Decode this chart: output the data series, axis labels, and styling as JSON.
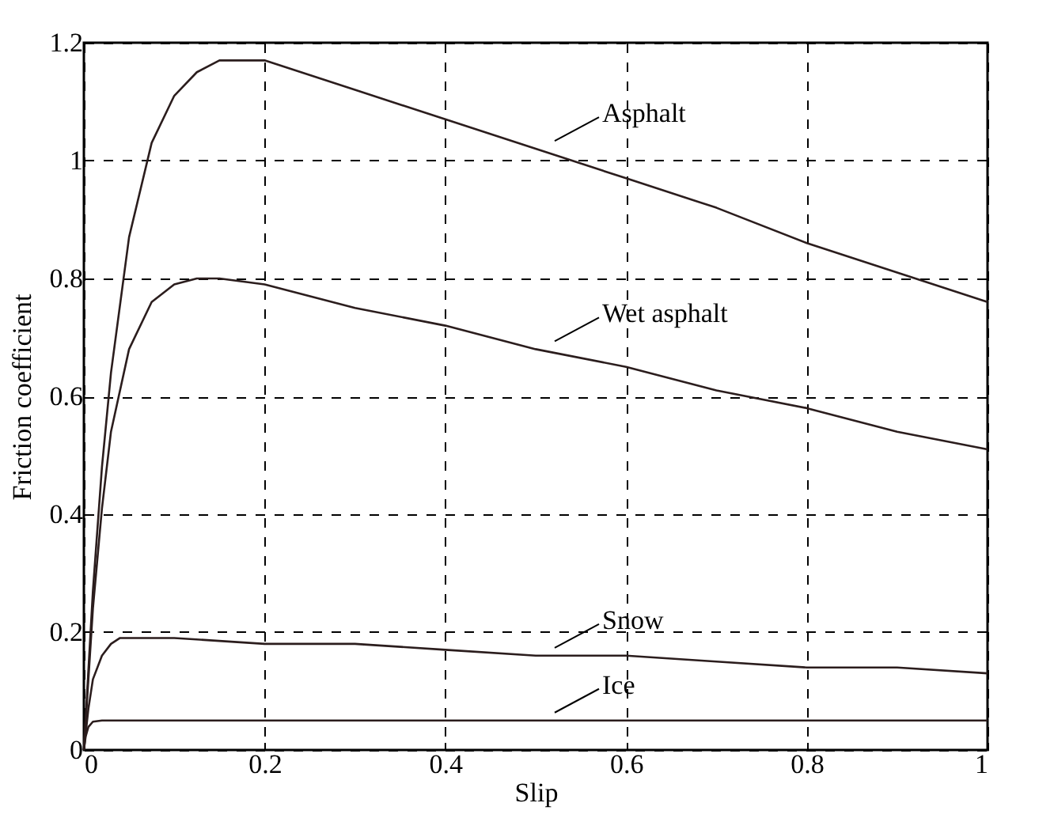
{
  "chart_data": {
    "type": "line",
    "xlabel": "Slip",
    "ylabel": "Friction coefficient",
    "xlim": [
      0,
      1
    ],
    "ylim": [
      0,
      1.2
    ],
    "xticks": [
      0,
      0.2,
      0.4,
      0.6,
      0.8,
      1
    ],
    "yticks": [
      0,
      0.2,
      0.4,
      0.6,
      0.8,
      1,
      1.2
    ],
    "grid": true,
    "marker": "none",
    "line_style": "solid",
    "series": [
      {
        "name": "Asphalt",
        "color": "#2b1d1d",
        "x": [
          0,
          0.01,
          0.02,
          0.03,
          0.05,
          0.075,
          0.1,
          0.125,
          0.15,
          0.175,
          0.2,
          0.3,
          0.4,
          0.5,
          0.6,
          0.7,
          0.8,
          0.9,
          1
        ],
        "values": [
          0,
          0.27,
          0.48,
          0.64,
          0.87,
          1.03,
          1.11,
          1.15,
          1.17,
          1.17,
          1.17,
          1.12,
          1.07,
          1.02,
          0.97,
          0.92,
          0.86,
          0.81,
          0.76
        ]
      },
      {
        "name": "Wet asphalt",
        "color": "#2b1d1d",
        "x": [
          0,
          0.01,
          0.02,
          0.03,
          0.05,
          0.075,
          0.1,
          0.125,
          0.15,
          0.2,
          0.3,
          0.4,
          0.5,
          0.6,
          0.7,
          0.8,
          0.9,
          1
        ],
        "values": [
          0,
          0.24,
          0.41,
          0.54,
          0.68,
          0.76,
          0.79,
          0.8,
          0.8,
          0.79,
          0.75,
          0.72,
          0.68,
          0.65,
          0.61,
          0.58,
          0.54,
          0.51
        ]
      },
      {
        "name": "Snow",
        "color": "#2b1d1d",
        "x": [
          0,
          0.005,
          0.01,
          0.02,
          0.03,
          0.04,
          0.05,
          0.1,
          0.2,
          0.3,
          0.4,
          0.5,
          0.6,
          0.7,
          0.8,
          0.9,
          1
        ],
        "values": [
          0,
          0.07,
          0.12,
          0.16,
          0.18,
          0.19,
          0.19,
          0.19,
          0.18,
          0.18,
          0.17,
          0.16,
          0.16,
          0.15,
          0.14,
          0.14,
          0.13
        ]
      },
      {
        "name": "Ice",
        "color": "#2b1d1d",
        "x": [
          0,
          0.002,
          0.005,
          0.01,
          0.02,
          0.5,
          1
        ],
        "values": [
          0,
          0.023,
          0.039,
          0.048,
          0.05,
          0.05,
          0.05
        ]
      }
    ]
  }
}
